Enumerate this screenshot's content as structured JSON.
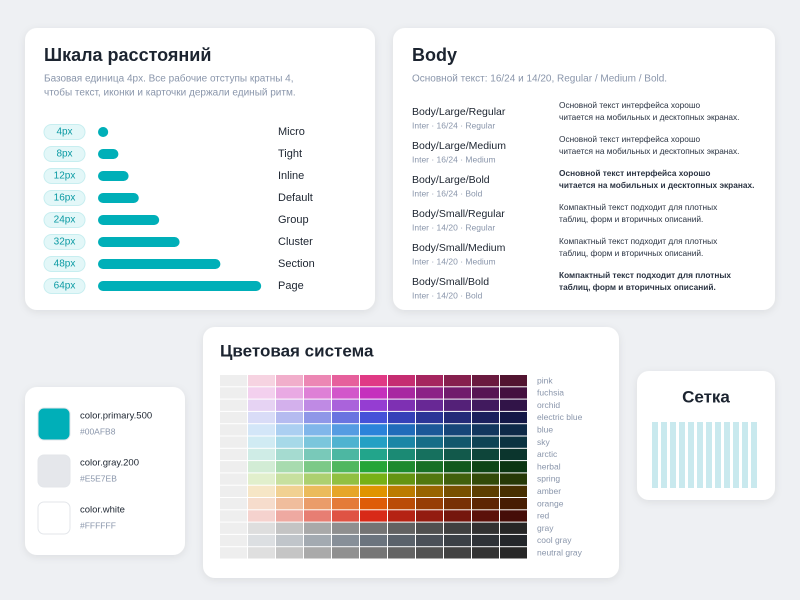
{
  "spacing": {
    "title": "Шкала расстояний",
    "description": [
      "Базовая единица 4px. Все рабочие отступы кратны 4,",
      "чтобы текст, иконки и карточки держали единый ритм."
    ],
    "items": [
      {
        "label": "4px",
        "value": 4,
        "name": "Micro"
      },
      {
        "label": "8px",
        "value": 8,
        "name": "Tight"
      },
      {
        "label": "12px",
        "value": 12,
        "name": "Inline"
      },
      {
        "label": "16px",
        "value": 16,
        "name": "Default"
      },
      {
        "label": "24px",
        "value": 24,
        "name": "Group"
      },
      {
        "label": "32px",
        "value": 32,
        "name": "Cluster"
      },
      {
        "label": "48px",
        "value": 48,
        "name": "Section"
      },
      {
        "label": "64px",
        "value": 64,
        "name": "Page"
      }
    ]
  },
  "body": {
    "title": "Body",
    "subtitle": "Основной текст: 16/24 и 14/20, Regular / Medium / Bold.",
    "styles": [
      {
        "name": "Body/Large/Regular",
        "meta": "Inter · 16/24 · Regular",
        "text": [
          "Основной текст интерфейса хорошо",
          "читается на мобильных и десктопных экранах."
        ],
        "weight": "normal"
      },
      {
        "name": "Body/Large/Medium",
        "meta": "Inter · 16/24 · Medium",
        "text": [
          "Основной текст интерфейса хорошо",
          "читается на мобильных и десктопных экранах."
        ],
        "weight": "500"
      },
      {
        "name": "Body/Large/Bold",
        "meta": "Inter · 16/24 · Bold",
        "text": [
          "Основной текст интерфейса хорошо",
          "читается на мобильных и десктопных экранах."
        ],
        "weight": "bold"
      },
      {
        "name": "Body/Small/Regular",
        "meta": "Inter · 14/20 · Regular",
        "text": [
          "Компактный текст подходит для плотных",
          "таблиц, форм и вторичных описаний."
        ],
        "weight": "normal"
      },
      {
        "name": "Body/Small/Medium",
        "meta": "Inter · 14/20 · Medium",
        "text": [
          "Компактный текст подходит для плотных",
          "таблиц, форм и вторичных описаний."
        ],
        "weight": "500"
      },
      {
        "name": "Body/Small/Bold",
        "meta": "Inter · 14/20 · Bold",
        "text": [
          "Компактный текст подходит для плотных",
          "таблиц, форм и вторичных описаний."
        ],
        "weight": "bold"
      }
    ]
  },
  "colors": {
    "title": "Цветовая система",
    "rows": [
      {
        "name": "pink",
        "shades": [
          "#eeeeee",
          "#f6d3e1",
          "#f1aecb",
          "#ec87b4",
          "#e6609c",
          "#e03a85",
          "#c52d71",
          "#a5255f",
          "#86204e",
          "#6a1a3f",
          "#521430"
        ]
      },
      {
        "name": "fuchsia",
        "shades": [
          "#eeeeee",
          "#f3d0ee",
          "#e9a9e3",
          "#de80d6",
          "#d257ca",
          "#c530bd",
          "#a827a1",
          "#8c2186",
          "#711b6c",
          "#571554",
          "#44103f"
        ]
      },
      {
        "name": "orchid",
        "shades": [
          "#eeeeee",
          "#e6d3f3",
          "#d3b0ec",
          "#bf8ae4",
          "#aa63db",
          "#953dd2",
          "#7e30b3",
          "#682895",
          "#542178",
          "#411a5e",
          "#311448"
        ]
      },
      {
        "name": "electric blue",
        "shades": [
          "#eeeeee",
          "#d9dcf7",
          "#b5bbf0",
          "#8f97e8",
          "#6a74e0",
          "#4551d8",
          "#3541b8",
          "#2b3597",
          "#232a78",
          "#1b205d",
          "#141847"
        ]
      },
      {
        "name": "blue",
        "shades": [
          "#eeeeee",
          "#d3e6f8",
          "#abcff1",
          "#80b6ea",
          "#559ce2",
          "#2b83da",
          "#206cba",
          "#1b5898",
          "#164679",
          "#12375e",
          "#0e2a48"
        ]
      },
      {
        "name": "sky",
        "shades": [
          "#eeeeee",
          "#d0ebf3",
          "#a6d9e8",
          "#7bc6dc",
          "#4fb3d0",
          "#24a0c4",
          "#1b86a6",
          "#166d87",
          "#12576c",
          "#0e4354",
          "#0b3341"
        ]
      },
      {
        "name": "arctic",
        "shades": [
          "#eeeeee",
          "#cfece6",
          "#a5dbd0",
          "#79c9b9",
          "#4db7a2",
          "#22a58b",
          "#1b8a74",
          "#16705e",
          "#12594b",
          "#0e453a",
          "#0b352d"
        ]
      },
      {
        "name": "herbal",
        "shades": [
          "#eeeeee",
          "#d2ecd5",
          "#a8dbaf",
          "#7cc987",
          "#50b75f",
          "#25a538",
          "#1d8a2e",
          "#177025",
          "#12591e",
          "#0e4517",
          "#0b3512"
        ]
      },
      {
        "name": "spring",
        "shades": [
          "#eeeeee",
          "#e1efcc",
          "#c7e09f",
          "#acd070",
          "#91c042",
          "#77b116",
          "#649412",
          "#51780f",
          "#41600c",
          "#324a09",
          "#263907"
        ]
      },
      {
        "name": "amber",
        "shades": [
          "#eeeeee",
          "#f6e6c6",
          "#f1d192",
          "#ebbb5c",
          "#e6a628",
          "#e09400",
          "#bb7b00",
          "#986400",
          "#785000",
          "#5d3e00",
          "#472f00"
        ]
      },
      {
        "name": "orange",
        "shades": [
          "#eeeeee",
          "#f6dccc",
          "#f0bd9c",
          "#ea9c6a",
          "#e47b38",
          "#de5c08",
          "#ba4c06",
          "#973e05",
          "#783104",
          "#5d2603",
          "#471d02"
        ]
      },
      {
        "name": "red",
        "shades": [
          "#eeeeee",
          "#f5d2ce",
          "#eea9a1",
          "#e77e73",
          "#df5344",
          "#d82a18",
          "#b52314",
          "#931c10",
          "#75160d",
          "#5b110a",
          "#450d08"
        ]
      },
      {
        "name": "gray",
        "shades": [
          "#eeeeee",
          "#dedede",
          "#c4c4c4",
          "#a9a9a9",
          "#8f8f8f",
          "#747474",
          "#626262",
          "#505050",
          "#404040",
          "#323232",
          "#262626"
        ]
      },
      {
        "name": "cool gray",
        "shades": [
          "#eeeeee",
          "#dcdfe2",
          "#c0c5ca",
          "#a3aab1",
          "#878f98",
          "#6b747e",
          "#5a626b",
          "#4a5058",
          "#3b4046",
          "#2e3237",
          "#23262a"
        ]
      },
      {
        "name": "neutral gray",
        "shades": [
          "#eeeeee",
          "#dfdfdf",
          "#c5c5c5",
          "#aaaaaa",
          "#909090",
          "#767676",
          "#646464",
          "#525252",
          "#424242",
          "#333333",
          "#272727"
        ]
      }
    ]
  },
  "tokens": [
    {
      "name": "color.primary.500",
      "hex": "#00AFB8"
    },
    {
      "name": "color.gray.200",
      "hex": "#E5E7EB"
    },
    {
      "name": "color.white",
      "hex": "#FFFFFF"
    }
  ],
  "grid": {
    "title": "Сетка",
    "columns": 12
  }
}
